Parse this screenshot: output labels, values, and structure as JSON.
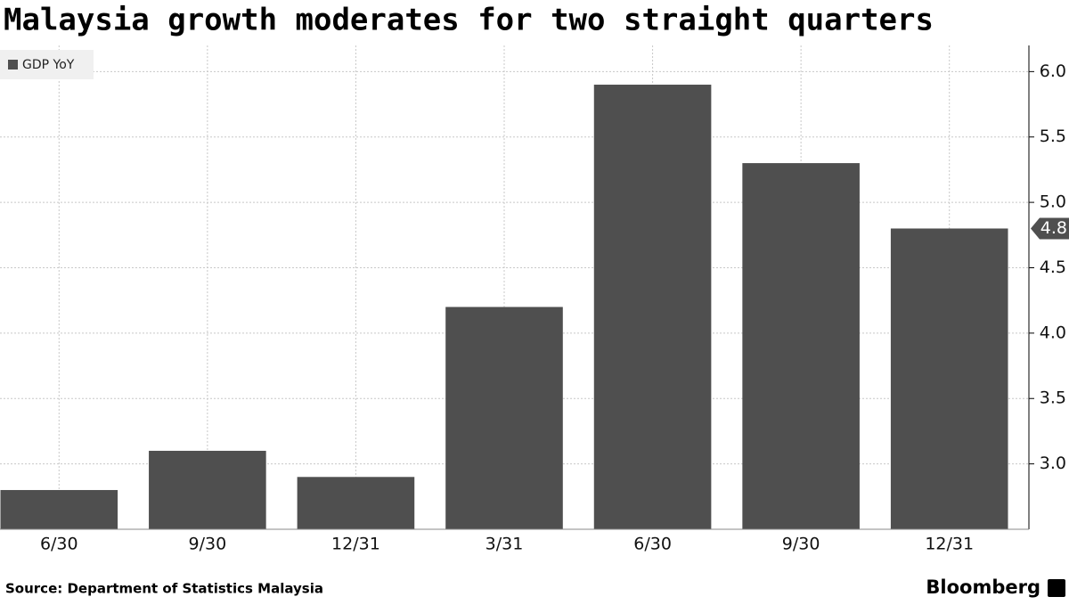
{
  "chart_data": {
    "type": "bar",
    "title": "Malaysia growth moderates for two straight quarters",
    "categories": [
      "6/30",
      "9/30",
      "12/31",
      "3/31",
      "6/30",
      "9/30",
      "12/31"
    ],
    "series": [
      {
        "name": "GDP YoY",
        "color": "#4f4f4f",
        "values": [
          2.8,
          3.1,
          2.9,
          4.2,
          5.9,
          5.3,
          4.8
        ]
      }
    ],
    "ylim": [
      2.5,
      6.2
    ],
    "yticks": [
      {
        "value": 3,
        "label": "3.0"
      },
      3.5,
      {
        "value": 4,
        "label": "4.0"
      },
      4.5,
      {
        "value": 5,
        "label": "5.0"
      },
      5.5,
      {
        "value": 6,
        "label": "6.0"
      }
    ],
    "grid": true,
    "legend": "top-left",
    "source": "Source: Department of Statistics Malaysia",
    "credit": "Bloomberg"
  }
}
